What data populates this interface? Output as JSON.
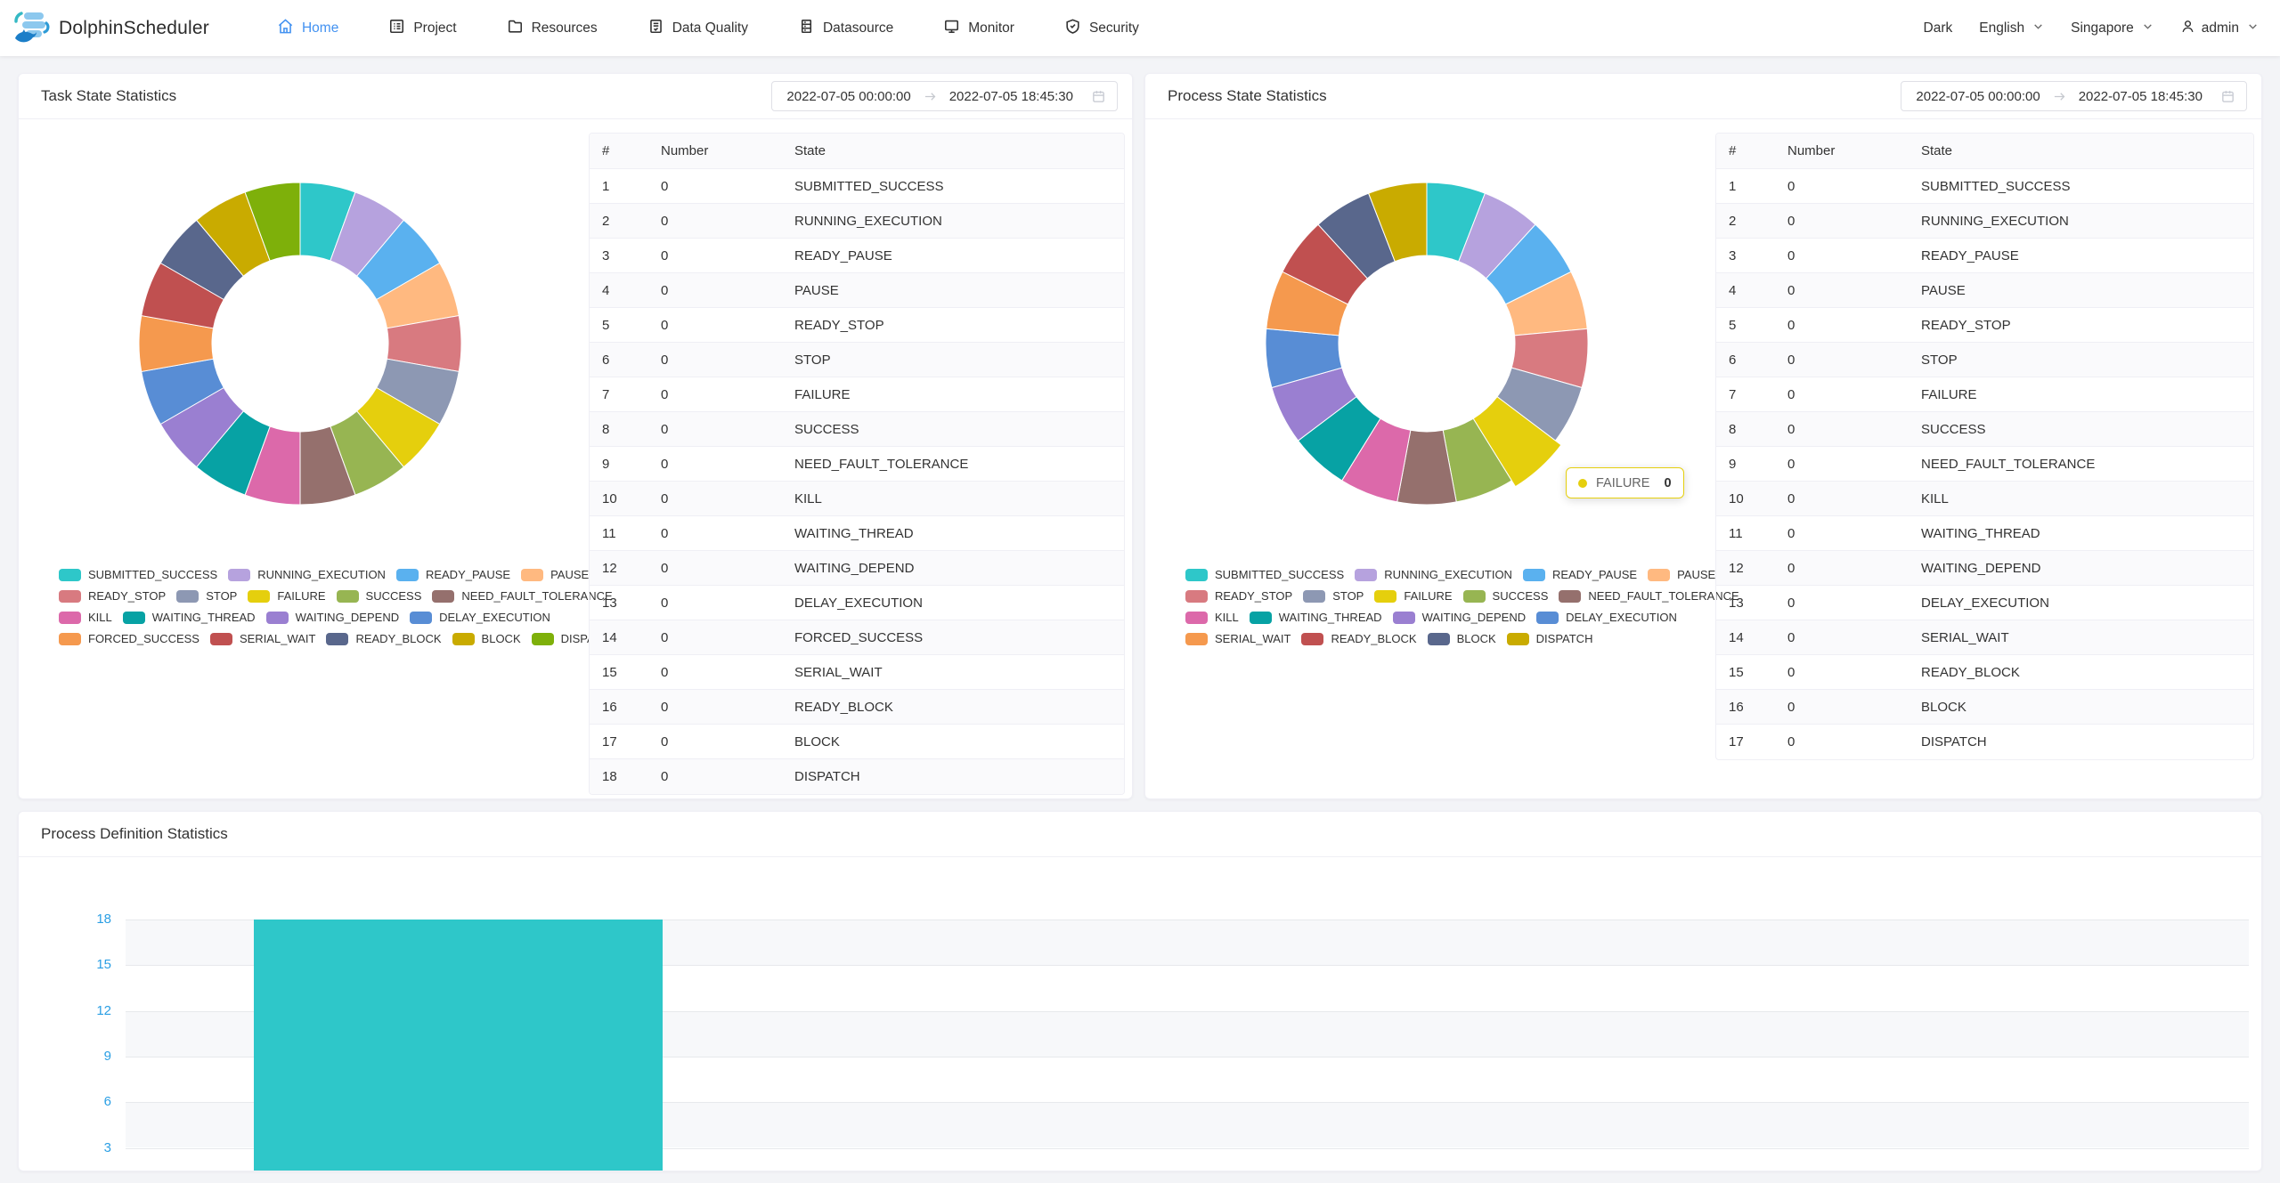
{
  "nav": {
    "brand": "DolphinScheduler",
    "items": [
      {
        "label": "Home",
        "active": true
      },
      {
        "label": "Project",
        "active": false
      },
      {
        "label": "Resources",
        "active": false
      },
      {
        "label": "Data Quality",
        "active": false
      },
      {
        "label": "Datasource",
        "active": false
      },
      {
        "label": "Monitor",
        "active": false
      },
      {
        "label": "Security",
        "active": false
      }
    ],
    "theme_label": "Dark",
    "language": "English",
    "timezone": "Singapore",
    "username": "admin"
  },
  "date_range": {
    "start": "2022-07-05 00:00:00",
    "end": "2022-07-05 18:45:30"
  },
  "task_card": {
    "title": "Task State Statistics",
    "table_headers": [
      "#",
      "Number",
      "State"
    ]
  },
  "process_card": {
    "title": "Process State Statistics",
    "table_headers": [
      "#",
      "Number",
      "State"
    ]
  },
  "definition_card": {
    "title": "Process Definition Statistics"
  },
  "chart_data": [
    {
      "type": "pie",
      "subtype": "donut",
      "title": "Task State Statistics",
      "legend_position": "bottom",
      "note": "all values are 0 so the donut renders 18 equal segments",
      "series": [
        {
          "name": "SUBMITTED_SUCCESS",
          "value": 0,
          "color": "#2ec7c9"
        },
        {
          "name": "RUNNING_EXECUTION",
          "value": 0,
          "color": "#b6a2de"
        },
        {
          "name": "READY_PAUSE",
          "value": 0,
          "color": "#5ab1ef"
        },
        {
          "name": "PAUSE",
          "value": 0,
          "color": "#ffb980"
        },
        {
          "name": "READY_STOP",
          "value": 0,
          "color": "#d87a80"
        },
        {
          "name": "STOP",
          "value": 0,
          "color": "#8d98b3"
        },
        {
          "name": "FAILURE",
          "value": 0,
          "color": "#e5cf0d"
        },
        {
          "name": "SUCCESS",
          "value": 0,
          "color": "#97b552"
        },
        {
          "name": "NEED_FAULT_TOLERANCE",
          "value": 0,
          "color": "#95706d"
        },
        {
          "name": "KILL",
          "value": 0,
          "color": "#dc69aa"
        },
        {
          "name": "WAITING_THREAD",
          "value": 0,
          "color": "#07a2a4"
        },
        {
          "name": "WAITING_DEPEND",
          "value": 0,
          "color": "#9a7fd1"
        },
        {
          "name": "DELAY_EXECUTION",
          "value": 0,
          "color": "#588dd5"
        },
        {
          "name": "FORCED_SUCCESS",
          "value": 0,
          "color": "#f5994e"
        },
        {
          "name": "SERIAL_WAIT",
          "value": 0,
          "color": "#c05050"
        },
        {
          "name": "READY_BLOCK",
          "value": 0,
          "color": "#59678c"
        },
        {
          "name": "BLOCK",
          "value": 0,
          "color": "#c9ab00"
        },
        {
          "name": "DISPATCH",
          "value": 0,
          "color": "#7eb00a"
        }
      ]
    },
    {
      "type": "pie",
      "subtype": "donut",
      "title": "Process State Statistics",
      "legend_position": "bottom",
      "note": "all values are 0 so the donut renders 17 equal segments; FAILURE segment hovered",
      "highlight": "FAILURE",
      "tooltip": {
        "label": "FAILURE",
        "value": "0",
        "color": "#e5cf0d"
      },
      "series": [
        {
          "name": "SUBMITTED_SUCCESS",
          "value": 0,
          "color": "#2ec7c9"
        },
        {
          "name": "RUNNING_EXECUTION",
          "value": 0,
          "color": "#b6a2de"
        },
        {
          "name": "READY_PAUSE",
          "value": 0,
          "color": "#5ab1ef"
        },
        {
          "name": "PAUSE",
          "value": 0,
          "color": "#ffb980"
        },
        {
          "name": "READY_STOP",
          "value": 0,
          "color": "#d87a80"
        },
        {
          "name": "STOP",
          "value": 0,
          "color": "#8d98b3"
        },
        {
          "name": "FAILURE",
          "value": 0,
          "color": "#e5cf0d"
        },
        {
          "name": "SUCCESS",
          "value": 0,
          "color": "#97b552"
        },
        {
          "name": "NEED_FAULT_TOLERANCE",
          "value": 0,
          "color": "#95706d"
        },
        {
          "name": "KILL",
          "value": 0,
          "color": "#dc69aa"
        },
        {
          "name": "WAITING_THREAD",
          "value": 0,
          "color": "#07a2a4"
        },
        {
          "name": "WAITING_DEPEND",
          "value": 0,
          "color": "#9a7fd1"
        },
        {
          "name": "DELAY_EXECUTION",
          "value": 0,
          "color": "#588dd5"
        },
        {
          "name": "SERIAL_WAIT",
          "value": 0,
          "color": "#f5994e"
        },
        {
          "name": "READY_BLOCK",
          "value": 0,
          "color": "#c05050"
        },
        {
          "name": "BLOCK",
          "value": 0,
          "color": "#59678c"
        },
        {
          "name": "DISPATCH",
          "value": 0,
          "color": "#c9ab00"
        }
      ]
    },
    {
      "type": "bar",
      "title": "Process Definition Statistics",
      "categories": [
        ""
      ],
      "values": [
        18
      ],
      "ylim": [
        0,
        18
      ],
      "yticks": [
        18,
        15,
        12,
        9,
        6,
        3
      ],
      "bar_color": "#2ec7c9",
      "grid": "striped horizontal bands, x axis labels cut off at viewport bottom"
    }
  ]
}
